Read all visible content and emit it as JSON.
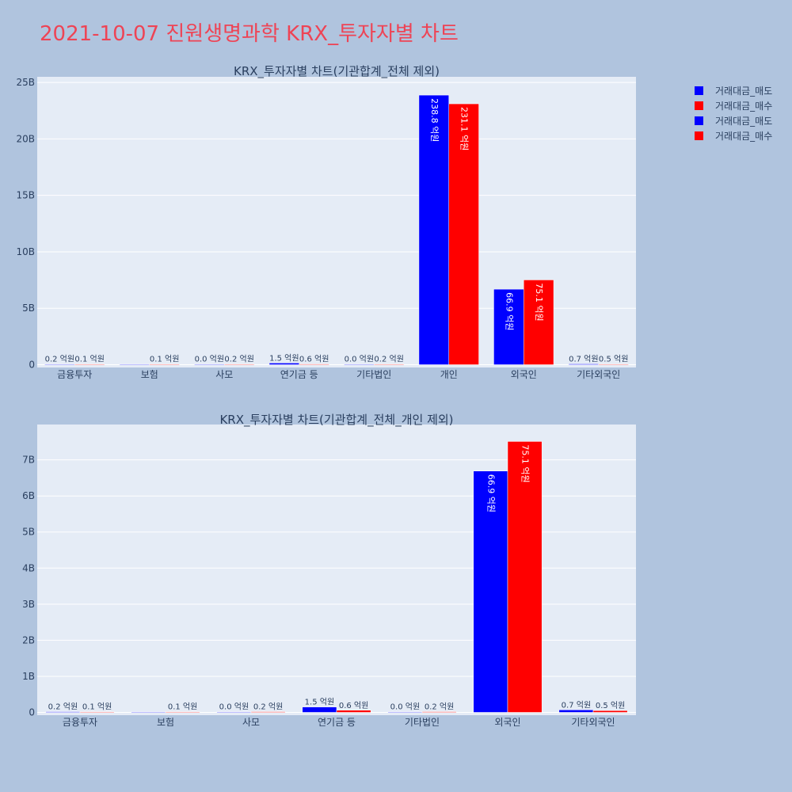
{
  "title": "2021-10-07 진원생명과학 KRX_투자자별 차트",
  "colors": {
    "sell": "#0000ff",
    "buy": "#ff0000",
    "title": "#ee4455"
  },
  "legend": {
    "placement": "top-right",
    "items": [
      {
        "label": "거래대금_매도",
        "color": "#0000ff"
      },
      {
        "label": "거래대금_매수",
        "color": "#ff0000"
      },
      {
        "label": "거래대금_매도",
        "color": "#0000ff"
      },
      {
        "label": "거래대금_매수",
        "color": "#ff0000"
      }
    ]
  },
  "chart_data": [
    {
      "type": "bar",
      "title": "KRX_투자자별 차트(기관합계_전체 제외)",
      "categories": [
        "금융투자",
        "보험",
        "사모",
        "연기금 등",
        "기타법인",
        "개인",
        "외국인",
        "기타외국인"
      ],
      "series": [
        {
          "name": "거래대금_매도",
          "values": [
            20000000,
            0,
            0,
            150000000,
            0,
            23880000000,
            6690000000,
            70000000
          ],
          "labels": [
            "0.2 억원",
            "",
            "0.0 억원",
            "1.5 억원",
            "0.0 억원",
            "238.8 억원",
            "66.9 억원",
            "0.7 억원"
          ]
        },
        {
          "name": "거래대금_매수",
          "values": [
            10000000,
            10000000,
            20000000,
            60000000,
            20000000,
            23110000000,
            7510000000,
            50000000
          ],
          "labels": [
            "0.1 억원",
            "0.1 억원",
            "0.2 억원",
            "0.6 억원",
            "0.2 억원",
            "231.1 억원",
            "75.1 억원",
            "0.5 억원"
          ]
        }
      ],
      "ylim": [
        0,
        25500000000
      ],
      "yticks": [
        0,
        5000000000,
        10000000000,
        15000000000,
        20000000000,
        25000000000
      ],
      "ytick_labels": [
        "0",
        "5B",
        "10B",
        "15B",
        "20B",
        "25B"
      ],
      "grid": true
    },
    {
      "type": "bar",
      "title": "KRX_투자자별 차트(기관합계_전체_개인 제외)",
      "categories": [
        "금융투자",
        "보험",
        "사모",
        "연기금 등",
        "기타법인",
        "외국인",
        "기타외국인"
      ],
      "series": [
        {
          "name": "거래대금_매도",
          "values": [
            20000000,
            0,
            0,
            150000000,
            0,
            6690000000,
            70000000
          ],
          "labels": [
            "0.2 억원",
            "",
            "0.0 억원",
            "1.5 억원",
            "0.0 억원",
            "66.9 억원",
            "0.7 억원"
          ]
        },
        {
          "name": "거래대금_매수",
          "values": [
            10000000,
            10000000,
            20000000,
            60000000,
            20000000,
            7510000000,
            50000000
          ],
          "labels": [
            "0.1 억원",
            "0.1 억원",
            "0.2 억원",
            "0.6 억원",
            "0.2 억원",
            "75.1 억원",
            "0.5 억원"
          ]
        }
      ],
      "ylim": [
        0,
        7980000000
      ],
      "yticks": [
        0,
        1000000000,
        2000000000,
        3000000000,
        4000000000,
        5000000000,
        6000000000,
        7000000000
      ],
      "ytick_labels": [
        "0",
        "1B",
        "2B",
        "3B",
        "4B",
        "5B",
        "6B",
        "7B"
      ],
      "grid": true
    }
  ]
}
